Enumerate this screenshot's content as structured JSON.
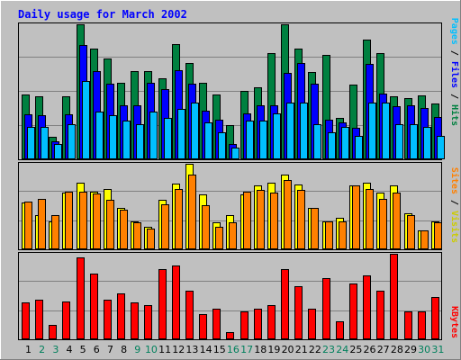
{
  "chart_data": [
    {
      "type": "bar",
      "title": "Daily usage for March 2002",
      "ymax_label": "1293",
      "ylim": [
        0,
        1293
      ],
      "grid": true,
      "legend": [
        {
          "label": "Pages",
          "color": "#00bfff"
        },
        {
          "label": "Files",
          "color": "#0000ff"
        },
        {
          "label": "Hits",
          "color": "#008040"
        }
      ],
      "categories": [
        "1",
        "2",
        "3",
        "4",
        "5",
        "6",
        "7",
        "8",
        "9",
        "10",
        "11",
        "12",
        "13",
        "14",
        "15",
        "16",
        "17",
        "18",
        "19",
        "20",
        "21",
        "22",
        "23",
        "24",
        "25",
        "26",
        "27",
        "28",
        "29",
        "30",
        "31"
      ],
      "series": [
        {
          "name": "Hits",
          "color": "#008040",
          "values": [
            621,
            605,
            215,
            604,
            1293,
            1062,
            964,
            730,
            844,
            844,
            775,
            1104,
            922,
            730,
            621,
            329,
            655,
            686,
            1018,
            1293,
            1062,
            832,
            1003,
            397,
            713,
            1148,
            1018,
            604,
            588,
            611,
            533
          ]
        },
        {
          "name": "Files",
          "color": "#0000ff",
          "values": [
            434,
            420,
            171,
            434,
            1091,
            846,
            720,
            517,
            520,
            730,
            675,
            854,
            720,
            469,
            381,
            150,
            436,
            520,
            520,
            829,
            923,
            720,
            378,
            351,
            306,
            917,
            625,
            506,
            520,
            492,
            409
          ]
        },
        {
          "name": "Pages",
          "color": "#00bfff",
          "values": [
            313,
            313,
            146,
            336,
            751,
            461,
            421,
            367,
            336,
            461,
            396,
            482,
            545,
            357,
            257,
            115,
            367,
            367,
            438,
            545,
            545,
            336,
            257,
            313,
            227,
            545,
            545,
            336,
            336,
            313,
            227
          ]
        }
      ]
    },
    {
      "type": "bar",
      "ymax_label": "148",
      "ylim": [
        0,
        148
      ],
      "grid": true,
      "legend": [
        {
          "label": "Sites",
          "color": "#ff8000"
        },
        {
          "label": "Visits",
          "color": "#ffff00"
        }
      ],
      "categories": [
        "1",
        "2",
        "3",
        "4",
        "5",
        "6",
        "7",
        "8",
        "9",
        "10",
        "11",
        "12",
        "13",
        "14",
        "15",
        "16",
        "17",
        "18",
        "19",
        "20",
        "21",
        "22",
        "23",
        "24",
        "25",
        "26",
        "27",
        "28",
        "29",
        "30",
        "31"
      ],
      "series": [
        {
          "name": "Visits",
          "color": "#ffff00",
          "values": [
            81,
            59,
            49,
            98,
            116,
            100,
            105,
            72,
            49,
            39,
            85,
            114,
            148,
            95,
            46,
            59,
            95,
            111,
            116,
            130,
            112,
            72,
            49,
            55,
            111,
            116,
            98,
            111,
            63,
            33,
            49
          ]
        },
        {
          "name": "Sites",
          "color": "#ff8000",
          "values": [
            83,
            88,
            59,
            99,
            100,
            96,
            85,
            69,
            46,
            36,
            78,
            105,
            130,
            76,
            39,
            46,
            100,
            103,
            98,
            120,
            103,
            72,
            49,
            49,
            111,
            105,
            88,
            98,
            59,
            33,
            46
          ]
        }
      ]
    },
    {
      "type": "bar",
      "ymax_label": "27407",
      "ylim": [
        0,
        27407
      ],
      "grid": true,
      "legend": [
        {
          "label": "KBytes",
          "color": "#ff0000"
        }
      ],
      "categories": [
        "1",
        "2",
        "3",
        "4",
        "5",
        "6",
        "7",
        "8",
        "9",
        "10",
        "11",
        "12",
        "13",
        "14",
        "15",
        "16",
        "17",
        "18",
        "19",
        "20",
        "21",
        "22",
        "23",
        "24",
        "25",
        "26",
        "27",
        "28",
        "29",
        "30",
        "31"
      ],
      "series": [
        {
          "name": "KBytes",
          "color": "#ff0000",
          "values": [
            11740,
            12837,
            4535,
            12186,
            26311,
            21089,
            12837,
            14577,
            11740,
            10983,
            22641,
            23638,
            15574,
            8058,
            9736,
            2449,
            9016,
            9736,
            10983,
            22641,
            17096,
            9736,
            19694,
            5633,
            17835,
            20464,
            15574,
            27407,
            8804,
            8804,
            13577
          ]
        }
      ]
    }
  ],
  "x_label_colors": {
    "weekday": "#000000",
    "weekend": "#00805c"
  },
  "weekend_days": [
    2,
    3,
    9,
    10,
    16,
    17,
    23,
    24,
    30,
    31
  ],
  "colors": {
    "background": "#c0c0c0",
    "title": "#0000ff",
    "plot_border": "#000000",
    "grid": "#808080"
  }
}
